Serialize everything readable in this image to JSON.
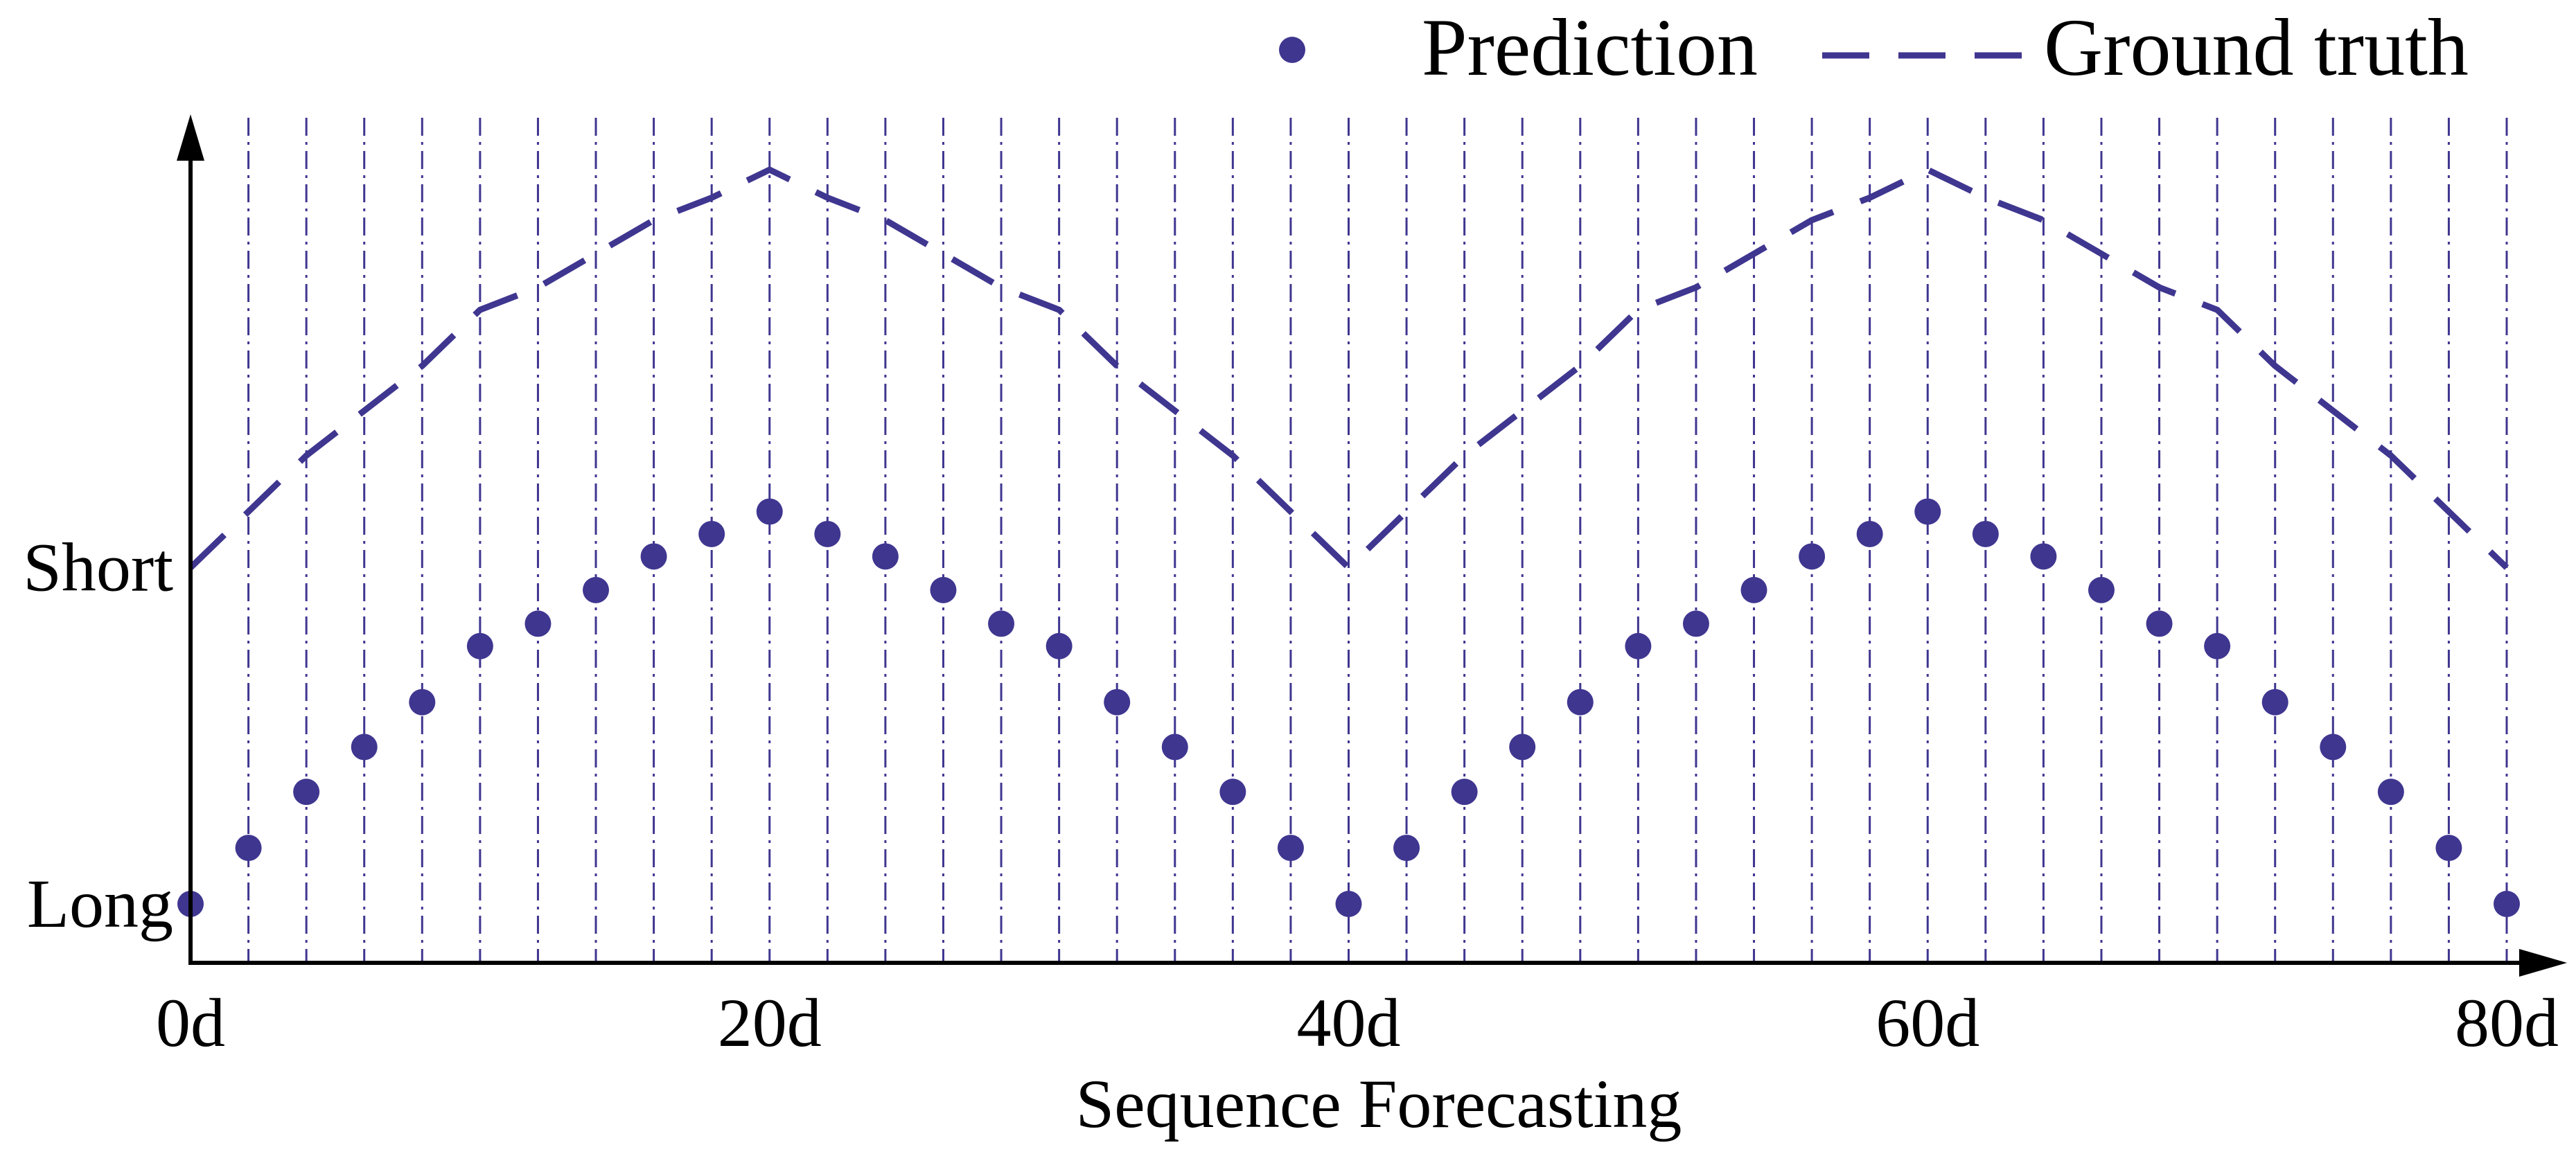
{
  "chart_data": {
    "type": "scatter",
    "xlabel": "Sequence Forecasting",
    "x_ticks": [
      {
        "value": 0,
        "label": "0d"
      },
      {
        "value": 20,
        "label": "20d"
      },
      {
        "value": 40,
        "label": "40d"
      },
      {
        "value": 60,
        "label": "60d"
      },
      {
        "value": 80,
        "label": "80d"
      }
    ],
    "y_ticks": [
      {
        "value": 0,
        "label": "Long"
      },
      {
        "value": 6,
        "label": "Short"
      }
    ],
    "xlim": [
      0,
      80
    ],
    "ylim": [
      -1,
      14.5
    ],
    "vertical_gridlines": [
      2,
      4,
      6,
      8,
      10,
      12,
      14,
      16,
      18,
      20,
      22,
      24,
      26,
      28,
      30,
      32,
      34,
      36,
      38,
      40,
      42,
      44,
      46,
      48,
      50,
      52,
      54,
      56,
      58,
      60,
      62,
      64,
      66,
      68,
      70,
      72,
      74,
      76,
      78,
      80
    ],
    "legend_position": "top-right",
    "color": "#3f3690",
    "series": [
      {
        "name": "Prediction",
        "style": "markers",
        "x": [
          0,
          2,
          4,
          6,
          8,
          10,
          12,
          14,
          16,
          18,
          20,
          22,
          24,
          26,
          28,
          30,
          32,
          34,
          36,
          38,
          40,
          42,
          44,
          46,
          48,
          50,
          52,
          54,
          56,
          58,
          60,
          62,
          64,
          66,
          68,
          70,
          72,
          74,
          76,
          78,
          80
        ],
        "y": [
          0,
          1,
          2,
          2.8,
          3.6,
          4.6,
          5,
          5.6,
          6.2,
          6.6,
          7.0,
          6.6,
          6.2,
          5.6,
          5,
          4.6,
          3.6,
          2.8,
          2,
          1,
          0,
          1,
          2,
          2.8,
          3.6,
          4.6,
          5,
          5.6,
          6.2,
          6.6,
          7.0,
          6.6,
          6.2,
          5.6,
          5,
          4.6,
          3.6,
          2.8,
          2,
          1,
          0
        ]
      },
      {
        "name": "Ground truth",
        "style": "dashed-line",
        "x": [
          0,
          2,
          4,
          6,
          8,
          10,
          12,
          14,
          16,
          18,
          20,
          22,
          24,
          26,
          28,
          30,
          32,
          34,
          36,
          38,
          40,
          42,
          44,
          46,
          48,
          50,
          52,
          54,
          56,
          58,
          60,
          62,
          64,
          66,
          68,
          70,
          72,
          74,
          76,
          78,
          80
        ],
        "y": [
          6,
          7.0,
          8.0,
          8.8,
          9.6,
          10.6,
          11,
          11.6,
          12.2,
          12.6,
          13.1,
          12.6,
          12.2,
          11.6,
          11,
          10.6,
          9.6,
          8.8,
          8.0,
          7.0,
          6,
          7.0,
          8.0,
          8.8,
          9.6,
          10.6,
          11,
          11.6,
          12.2,
          12.6,
          13.1,
          12.6,
          12.2,
          11.6,
          11,
          10.6,
          9.6,
          8.8,
          8.0,
          7.0,
          6
        ]
      }
    ]
  }
}
